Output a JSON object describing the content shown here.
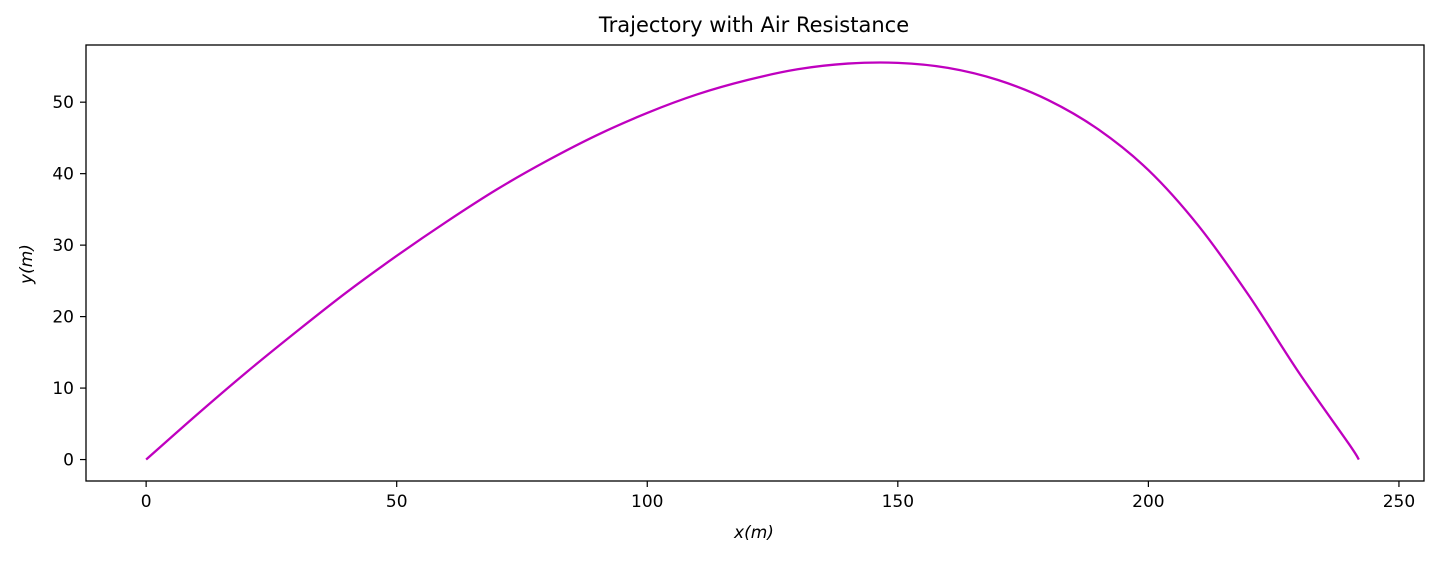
{
  "chart_data": {
    "type": "line",
    "title": "Trajectory with Air Resistance",
    "xlabel": "x(m)",
    "ylabel": "y(m)",
    "xlim": [
      -12,
      255
    ],
    "ylim": [
      -3,
      58
    ],
    "xticks": [
      0,
      50,
      100,
      150,
      200,
      250
    ],
    "yticks": [
      0,
      10,
      20,
      30,
      40,
      50
    ],
    "xtick_labels": [
      "0",
      "50",
      "100",
      "150",
      "200",
      "250"
    ],
    "ytick_labels": [
      "0",
      "10",
      "20",
      "30",
      "40",
      "50"
    ],
    "grid": false,
    "series": [
      {
        "color": "#bf00bf",
        "x": [
          0,
          10,
          20,
          30,
          40,
          50,
          60,
          70,
          80,
          90,
          100,
          110,
          120,
          130,
          140,
          150,
          160,
          170,
          180,
          190,
          200,
          210,
          220,
          230,
          240,
          242
        ],
        "y": [
          0,
          6.2,
          12.2,
          17.9,
          23.4,
          28.5,
          33.3,
          37.8,
          41.8,
          45.4,
          48.5,
          51.1,
          53.1,
          54.6,
          55.4,
          55.5,
          54.8,
          53.1,
          50.3,
          46.2,
          40.5,
          32.7,
          23.0,
          12.2,
          2.2,
          0
        ]
      }
    ]
  }
}
